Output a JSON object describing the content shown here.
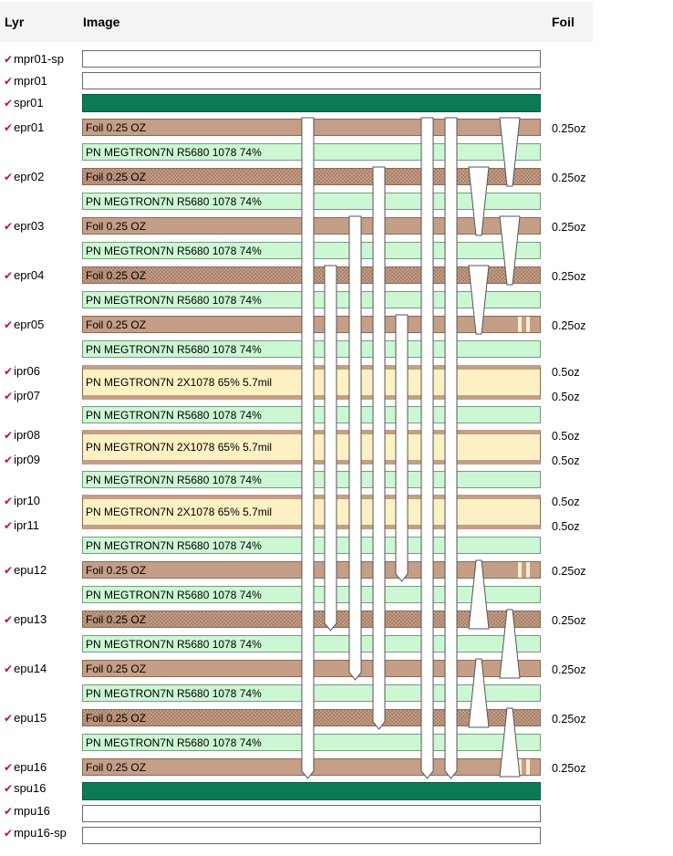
{
  "headers": {
    "lyr": "Lyr",
    "image": "Image",
    "foil": "Foil"
  },
  "colors": {
    "check_mark": "#c8102e",
    "solder_mask": "#0b7a57",
    "foil_copper": "#c49e86",
    "core": "#ccf7d3",
    "prepreg": "#fbf1c3"
  },
  "icons": {
    "check": "✔"
  },
  "layer_labels": {
    "mpr01_sp": "mpr01-sp",
    "mpr01": "mpr01",
    "spr01": "spr01",
    "epr01": "epr01",
    "epr02": "epr02",
    "epr03": "epr03",
    "epr04": "epr04",
    "epr05": "epr05",
    "ipr06": "ipr06",
    "ipr07": "ipr07",
    "ipr08": "ipr08",
    "ipr09": "ipr09",
    "ipr10": "ipr10",
    "ipr11": "ipr11",
    "epu12": "epu12",
    "epu13": "epu13",
    "epu14": "epu14",
    "epu15": "epu15",
    "epu16": "epu16",
    "spu16": "spu16",
    "mpu16": "mpu16",
    "mpu16_sp": "mpu16-sp"
  },
  "materials": {
    "foil_025": "Foil 0.25 OZ",
    "core": "PN MEGTRON7N R5680 1078 74%",
    "prepreg_2x1078": "PN MEGTRON7N 2X1078 65% 5.7mil"
  },
  "foil_weights": {
    "epr01": "0.25oz",
    "epr02": "0.25oz",
    "epr03": "0.25oz",
    "epr04": "0.25oz",
    "epr05": "0.25oz",
    "ipr06": "0.5oz",
    "ipr07": "0.5oz",
    "ipr08": "0.5oz",
    "ipr09": "0.5oz",
    "ipr10": "0.5oz",
    "ipr11": "0.5oz",
    "epu12": "0.25oz",
    "epu13": "0.25oz",
    "epu14": "0.25oz",
    "epu15": "0.25oz",
    "epu16": "0.25oz"
  }
}
